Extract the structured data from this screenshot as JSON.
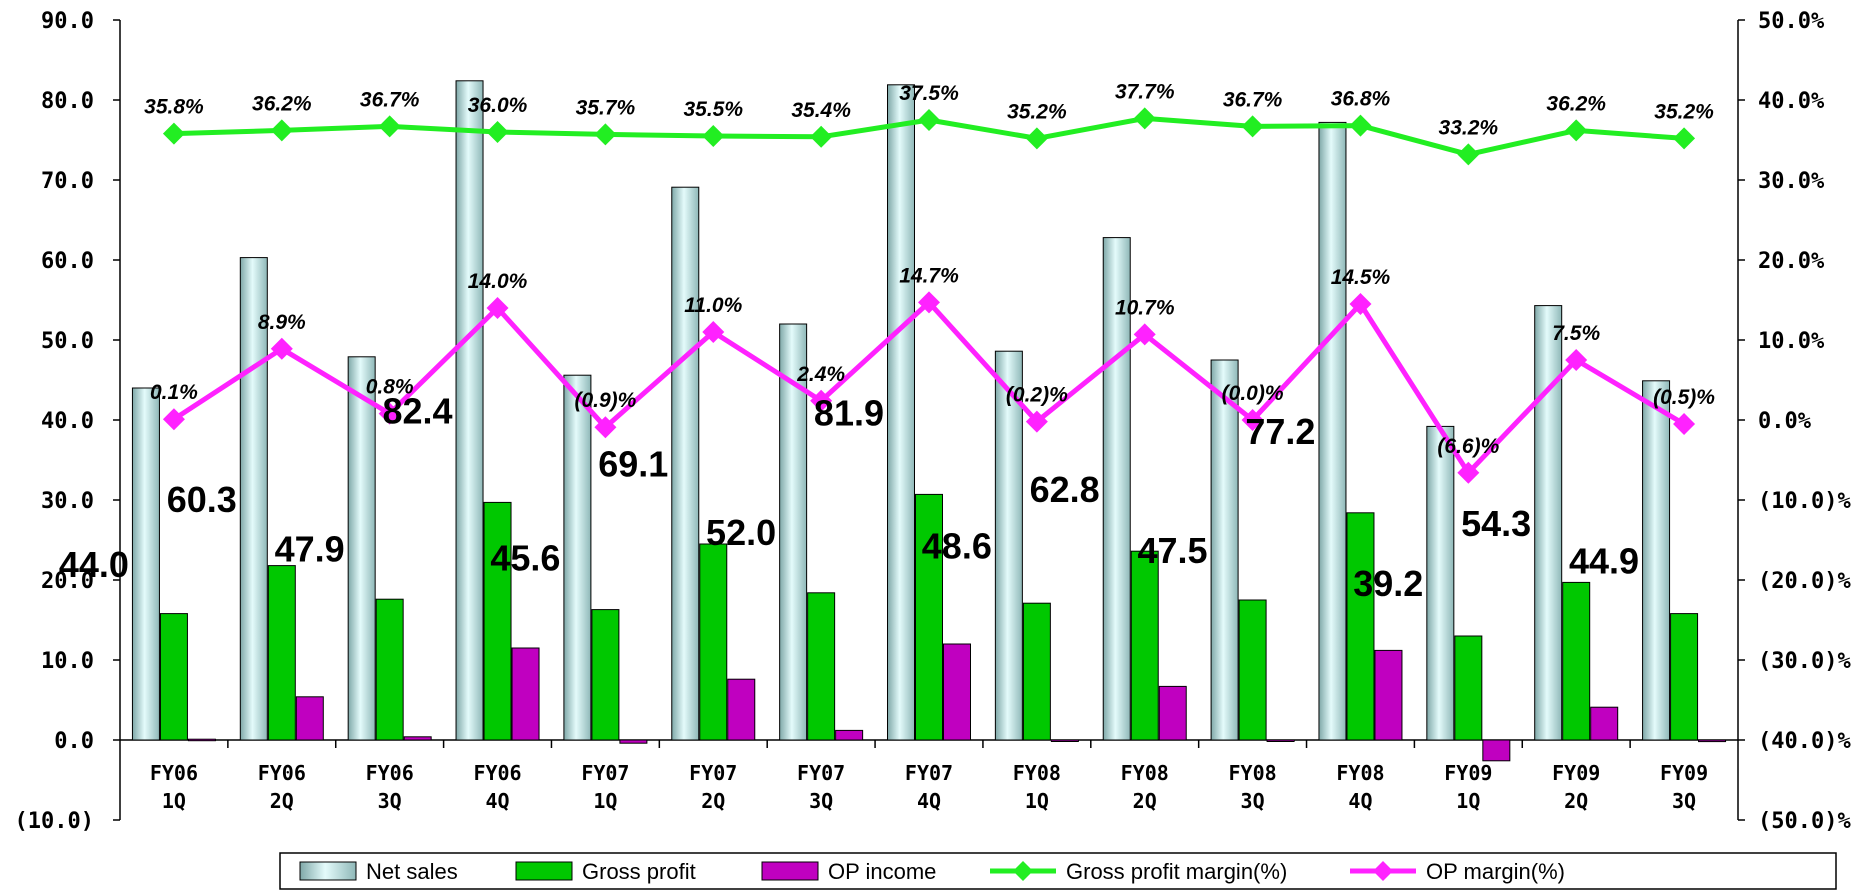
{
  "chart_data": {
    "type": "bar",
    "categories": [
      [
        "FY06",
        "1Q"
      ],
      [
        "FY06",
        "2Q"
      ],
      [
        "FY06",
        "3Q"
      ],
      [
        "FY06",
        "4Q"
      ],
      [
        "FY07",
        "1Q"
      ],
      [
        "FY07",
        "2Q"
      ],
      [
        "FY07",
        "3Q"
      ],
      [
        "FY07",
        "4Q"
      ],
      [
        "FY08",
        "1Q"
      ],
      [
        "FY08",
        "2Q"
      ],
      [
        "FY08",
        "3Q"
      ],
      [
        "FY08",
        "4Q"
      ],
      [
        "FY09",
        "1Q"
      ],
      [
        "FY09",
        "2Q"
      ],
      [
        "FY09",
        "3Q"
      ]
    ],
    "y_left": {
      "ylim": [
        -10,
        90
      ],
      "ticks": [
        90,
        80,
        70,
        60,
        50,
        40,
        30,
        20,
        10,
        0,
        -10
      ],
      "tick_labels": [
        "90.0",
        "80.0",
        "70.0",
        "60.0",
        "50.0",
        "40.0",
        "30.0",
        "20.0",
        "10.0",
        "0.0",
        "(10.0)"
      ]
    },
    "y_right": {
      "ylim": [
        -50,
        50
      ],
      "ticks": [
        50,
        40,
        30,
        20,
        10,
        0,
        -10,
        -20,
        -30,
        -40,
        -50
      ],
      "tick_labels": [
        "50.0%",
        "40.0%",
        "30.0%",
        "20.0%",
        "10.0%",
        "0.0%",
        "(10.0)%",
        "(20.0)%",
        "(30.0)%",
        "(40.0)%",
        "(50.0)%"
      ]
    },
    "bar_series": [
      {
        "name": "Net sales",
        "color": "#c4ecec",
        "values": [
          44.0,
          60.3,
          47.9,
          82.4,
          45.6,
          69.1,
          52.0,
          81.9,
          48.6,
          62.8,
          47.5,
          77.2,
          39.2,
          54.3,
          44.9
        ],
        "labels": [
          "44.0",
          "60.3",
          "47.9",
          "82.4",
          "45.6",
          "69.1",
          "52.0",
          "81.9",
          "48.6",
          "62.8",
          "47.5",
          "77.2",
          "39.2",
          "54.3",
          "44.9"
        ]
      },
      {
        "name": "Gross profit",
        "color": "#00c800",
        "values": [
          15.8,
          21.8,
          17.6,
          29.7,
          16.3,
          24.5,
          18.4,
          30.7,
          17.1,
          23.6,
          17.5,
          28.4,
          13.0,
          19.7,
          15.8
        ]
      },
      {
        "name": "OP income",
        "color": "#c000c0",
        "values": [
          0.1,
          5.4,
          0.4,
          11.5,
          -0.4,
          7.6,
          1.2,
          12.0,
          -0.1,
          6.7,
          0.0,
          11.2,
          -2.6,
          4.1,
          -0.2
        ]
      }
    ],
    "line_series": [
      {
        "name": "Gross profit margin(%)",
        "color": "#22ee22",
        "axis": "right",
        "values": [
          35.8,
          36.2,
          36.7,
          36.0,
          35.7,
          35.5,
          35.4,
          37.5,
          35.2,
          37.7,
          36.7,
          36.8,
          33.2,
          36.2,
          35.2
        ],
        "labels": [
          "35.8%",
          "36.2%",
          "36.7%",
          "36.0%",
          "35.7%",
          "35.5%",
          "35.4%",
          "37.5%",
          "35.2%",
          "37.7%",
          "36.7%",
          "36.8%",
          "33.2%",
          "36.2%",
          "35.2%"
        ]
      },
      {
        "name": "OP margin(%)",
        "color": "#ff22ff",
        "axis": "right",
        "values": [
          0.1,
          8.9,
          0.8,
          14.0,
          -0.9,
          11.0,
          2.4,
          14.7,
          -0.2,
          10.7,
          -0.0,
          14.5,
          -6.6,
          7.5,
          -0.5
        ],
        "labels": [
          "0.1%",
          "8.9%",
          "0.8%",
          "14.0%",
          "(0.9)%",
          "11.0%",
          "2.4%",
          "14.7%",
          "(0.2)%",
          "10.7%",
          "(0.0)%",
          "14.5%",
          "(6.6)%",
          "7.5%",
          "(0.5)%"
        ]
      }
    ],
    "legend": {
      "placement": "bottom",
      "items": [
        "Net sales",
        "Gross profit",
        "OP income",
        "Gross profit margin(%)",
        "OP margin(%)"
      ]
    },
    "title": "",
    "xlabel": "",
    "ylabel": "",
    "grid": false
  }
}
